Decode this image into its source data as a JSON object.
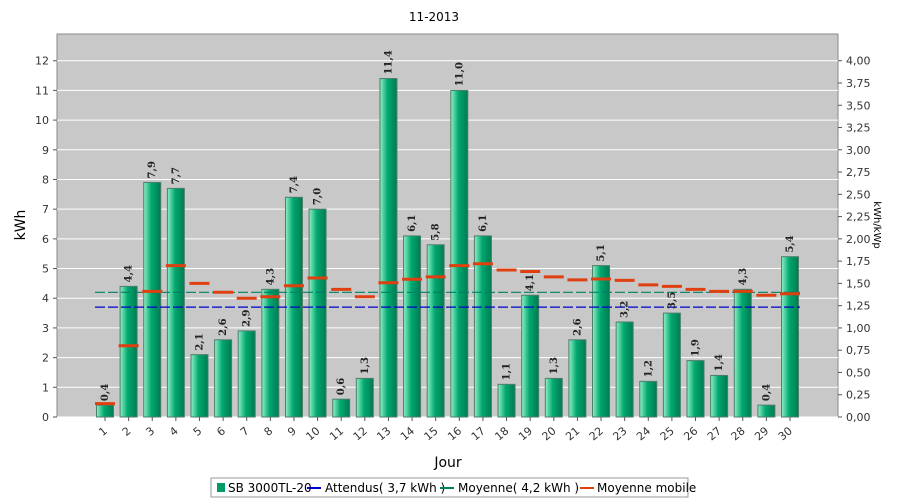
{
  "chart_data": {
    "type": "bar",
    "title": "11-2013",
    "xlabel": "Jour",
    "ylabel": "kWh",
    "ylabel_right": "kWh/kWp",
    "ylim": [
      0,
      12.9
    ],
    "ylim_right": [
      0,
      4.3
    ],
    "yticks": [
      "0",
      "1",
      "2",
      "3",
      "4",
      "5",
      "6",
      "7",
      "8",
      "9",
      "10",
      "11",
      "12"
    ],
    "yticks_right": [
      "0,00",
      "0,25",
      "0,50",
      "0,75",
      "1,00",
      "1,25",
      "1,50",
      "1,75",
      "2,00",
      "2,25",
      "2,50",
      "2,75",
      "3,00",
      "3,25",
      "3,50",
      "3,75",
      "4,00"
    ],
    "categories": [
      "1",
      "2",
      "3",
      "4",
      "5",
      "6",
      "7",
      "8",
      "9",
      "10",
      "11",
      "12",
      "13",
      "14",
      "15",
      "16",
      "17",
      "18",
      "19",
      "20",
      "21",
      "22",
      "23",
      "24",
      "25",
      "26",
      "27",
      "28",
      "29",
      "30"
    ],
    "values": [
      0.4,
      4.4,
      7.9,
      7.7,
      2.1,
      2.6,
      2.9,
      4.3,
      7.4,
      7.0,
      0.6,
      1.3,
      11.4,
      6.1,
      5.8,
      11.0,
      6.1,
      1.1,
      4.1,
      1.3,
      2.6,
      5.1,
      3.2,
      1.2,
      3.5,
      1.9,
      1.4,
      4.3,
      0.4,
      5.4
    ],
    "value_labels": [
      "0,4",
      "4,4",
      "7,9",
      "7,7",
      "2,1",
      "2,6",
      "2,9",
      "4,3",
      "7,4",
      "7,0",
      "0,6",
      "1,3",
      "11,4",
      "6,1",
      "5,8",
      "11,0",
      "6,1",
      "1,1",
      "4,1",
      "1,3",
      "2,6",
      "5,1",
      "3,2",
      "1,2",
      "3,5",
      "1,9",
      "1,4",
      "4,3",
      "0,4",
      "5,4"
    ],
    "moving_average": [
      0.45,
      2.4,
      4.23,
      5.1,
      4.5,
      4.2,
      4.0,
      4.05,
      4.42,
      4.68,
      4.3,
      4.05,
      4.52,
      4.64,
      4.72,
      5.1,
      5.16,
      4.95,
      4.9,
      4.72,
      4.62,
      4.65,
      4.6,
      4.45,
      4.4,
      4.3,
      4.23,
      4.23,
      4.1,
      4.15
    ],
    "expected": 3.7,
    "average": 4.2,
    "grid": true,
    "legend_position": "bottom",
    "series": [
      {
        "name": "SB 3000TL-20",
        "color": "#00a870"
      },
      {
        "name": "Attendus( 3,7 kWh )",
        "color": "#0000cc"
      },
      {
        "name": "Moyenne( 4,2 kWh )",
        "color": "#008060"
      },
      {
        "name": "Moyenne mobile",
        "color": "#e04010"
      }
    ]
  }
}
